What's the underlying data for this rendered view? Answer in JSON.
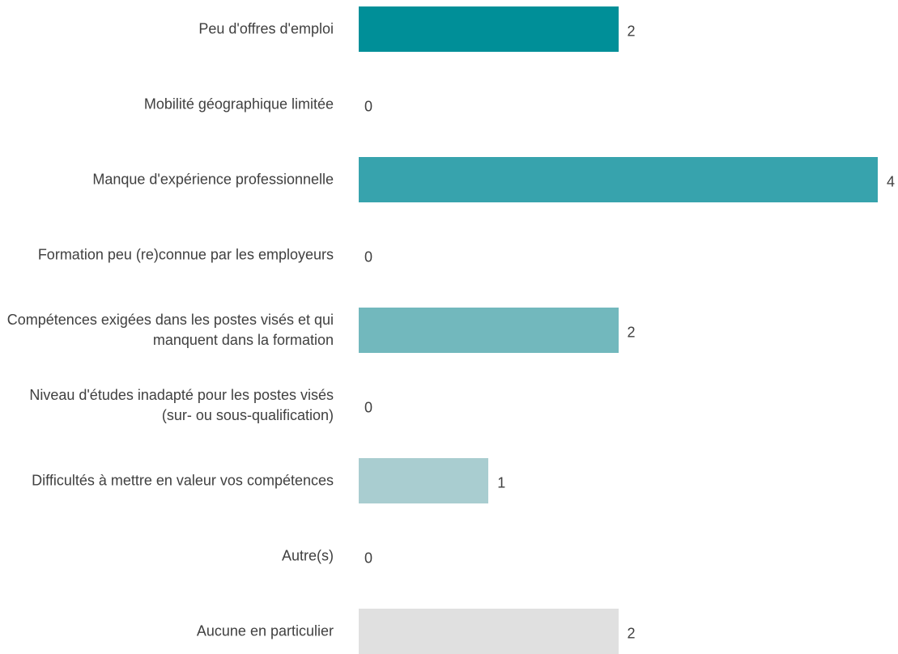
{
  "chart_data": {
    "type": "bar",
    "orientation": "horizontal",
    "categories": [
      "Peu d'offres d'emploi",
      "Mobilité géographique limitée",
      "Manque d'expérience professionnelle",
      "Formation peu (re)connue par les employeurs",
      "Compétences exigées dans les postes visés et qui manquent dans la formation",
      "Niveau d'études inadapté pour les postes visés (sur- ou sous-qualification)",
      "Difficultés à mettre en valeur vos compétences",
      "Autre(s)",
      "Aucune en particulier"
    ],
    "values": [
      2,
      0,
      4,
      0,
      2,
      0,
      1,
      0,
      2
    ],
    "colors": [
      "#008f98",
      "#1c99a2",
      "#37a3ad",
      "#55aeb5",
      "#72b8bd",
      "#8ec3c7",
      "#a9cdd0",
      "#c5d7d8",
      "#e0e0e0"
    ]
  }
}
